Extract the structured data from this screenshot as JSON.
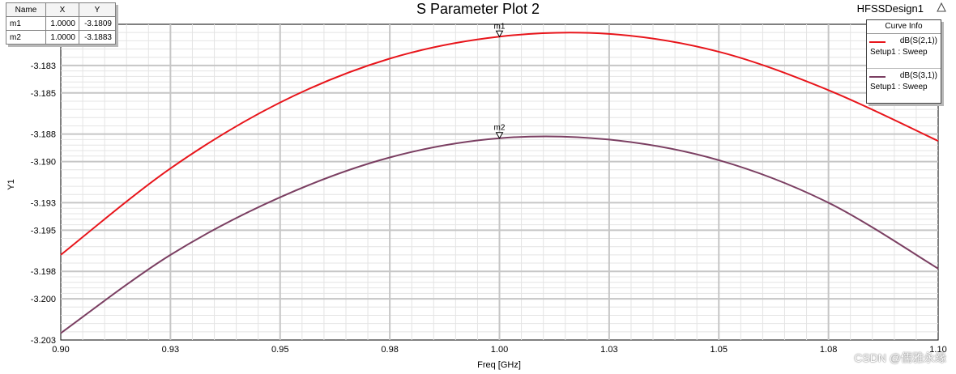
{
  "title": "S Parameter Plot 2",
  "design_name": "HFSSDesign1",
  "watermark": "CSDN @儒雅永缘",
  "marker_table": {
    "headers": [
      "Name",
      "X",
      "Y"
    ],
    "rows": [
      {
        "name": "m1",
        "x": "1.0000",
        "y": "-3.1809"
      },
      {
        "name": "m2",
        "x": "1.0000",
        "y": "-3.1883"
      }
    ]
  },
  "legend": {
    "title": "Curve Info",
    "entries": [
      {
        "name": "dB(S(2,1))",
        "setup": "Setup1 : Sweep",
        "color": "#e8151b"
      },
      {
        "name": "dB(S(3,1))",
        "setup": "Setup1 : Sweep",
        "color": "#7b3f62"
      }
    ]
  },
  "chart_data": {
    "type": "line",
    "title": "S Parameter Plot 2",
    "xlabel": "Freq [GHz]",
    "ylabel": "Y1",
    "xlim": [
      0.9,
      1.1
    ],
    "ylim": [
      -3.203,
      -3.18
    ],
    "xticks": [
      "0.90",
      "0.93",
      "0.95",
      "0.98",
      "1.00",
      "1.03",
      "1.05",
      "1.08",
      "1.10"
    ],
    "yticks": [
      "-3.183",
      "-3.185",
      "-3.188",
      "-3.190",
      "-3.193",
      "-3.195",
      "-3.198",
      "-3.200",
      "-3.203"
    ],
    "grid": true,
    "legend_position": "top-right",
    "series": [
      {
        "name": "dB(S(2,1))",
        "color": "#e8151b",
        "x": [
          0.9,
          0.925,
          0.95,
          0.975,
          1.0,
          1.025,
          1.05,
          1.075,
          1.1
        ],
        "y": [
          -3.1968,
          -3.1905,
          -3.1857,
          -3.1825,
          -3.1809,
          -3.1807,
          -3.182,
          -3.1848,
          -3.1885
        ]
      },
      {
        "name": "dB(S(3,1))",
        "color": "#7b3f62",
        "x": [
          0.9,
          0.925,
          0.95,
          0.975,
          1.0,
          1.025,
          1.05,
          1.075,
          1.1
        ],
        "y": [
          -3.2025,
          -3.1968,
          -3.1926,
          -3.1897,
          -3.1883,
          -3.1884,
          -3.1899,
          -3.193,
          -3.1978
        ]
      }
    ],
    "markers": [
      {
        "name": "m1",
        "series": "dB(S(2,1))",
        "x": 1.0,
        "y": -3.1809
      },
      {
        "name": "m2",
        "series": "dB(S(3,1))",
        "x": 1.0,
        "y": -3.1883
      }
    ]
  }
}
